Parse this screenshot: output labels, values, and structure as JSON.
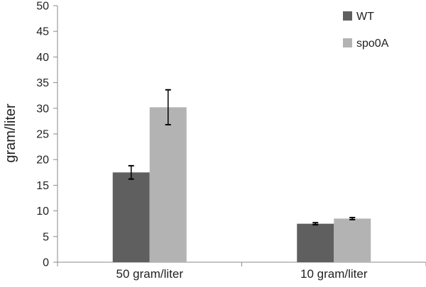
{
  "chart_data": {
    "type": "bar",
    "title": "",
    "xlabel": "",
    "ylabel": "gram/liter",
    "ylim": [
      0,
      50
    ],
    "yticks": [
      0,
      5,
      10,
      15,
      20,
      25,
      30,
      35,
      40,
      45,
      50
    ],
    "grid": false,
    "legend_position": "top-right",
    "categories": [
      "50 gram/liter",
      "10 gram/liter"
    ],
    "series": [
      {
        "name": "WT",
        "color": "#5f5f5f",
        "values": [
          17.5,
          7.5
        ],
        "errors": [
          1.3,
          0.2
        ]
      },
      {
        "name": "spo0A",
        "color": "#b3b3b3",
        "values": [
          30.2,
          8.5
        ],
        "errors": [
          3.4,
          0.2
        ]
      }
    ]
  }
}
